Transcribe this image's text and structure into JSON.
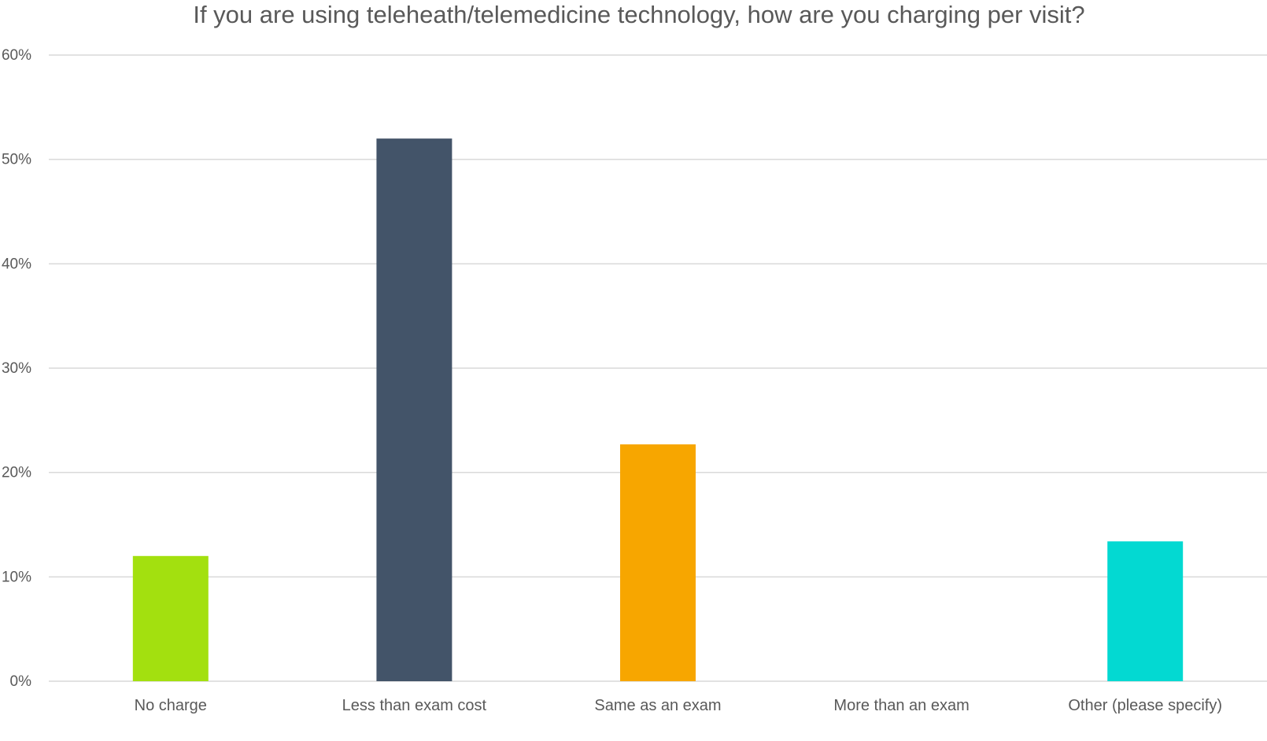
{
  "chart_data": {
    "type": "bar",
    "title": "If you are using teleheath/telemedicine technology, how are you charging per visit?",
    "xlabel": "",
    "ylabel": "",
    "categories": [
      "No charge",
      "Less than exam cost",
      "Same as an exam",
      "More than an exam",
      "Other (please specify)"
    ],
    "values": [
      12.0,
      52.0,
      22.7,
      0,
      13.4
    ],
    "colors": [
      "#a3e00f",
      "#435469",
      "#f7a600",
      "#5a8fd6",
      "#03d9d2"
    ],
    "ylim": [
      0,
      60
    ],
    "yticks": [
      0,
      10,
      20,
      30,
      40,
      50,
      60
    ],
    "ytick_labels": [
      "0%",
      "10%",
      "20%",
      "30%",
      "40%",
      "50%",
      "60%"
    ],
    "grid": true,
    "legend": "none"
  }
}
